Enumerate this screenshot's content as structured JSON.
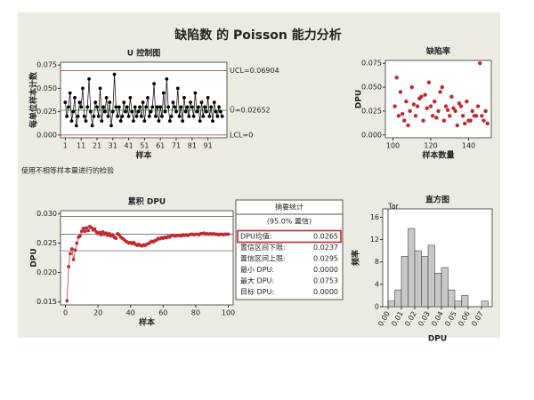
{
  "title": "缺陷数 的 Poisson 能力分析",
  "note": "使用不相等样本量进行的检验",
  "chart_data": [
    {
      "type": "line",
      "title": "U 控制图",
      "xlabel": "样本",
      "ylabel": "每单位样本计数",
      "color": "#000000",
      "limit_color": "#b03030",
      "ucl": 0.06904,
      "ucl_label": "UCL=0.06904",
      "center": 0.02652,
      "center_label": "Ū=0.02652",
      "lcl": 0,
      "lcl_label": "LCL=0",
      "x": [
        1,
        2,
        3,
        4,
        5,
        6,
        7,
        8,
        9,
        10,
        11,
        12,
        13,
        14,
        15,
        16,
        17,
        18,
        19,
        20,
        21,
        22,
        23,
        24,
        25,
        26,
        27,
        28,
        29,
        30,
        31,
        32,
        33,
        34,
        35,
        36,
        37,
        38,
        39,
        40,
        41,
        42,
        43,
        44,
        45,
        46,
        47,
        48,
        49,
        50,
        51,
        52,
        53,
        54,
        55,
        56,
        57,
        58,
        59,
        60,
        61,
        62,
        63,
        64,
        65,
        66,
        67,
        68,
        69,
        70,
        71,
        72,
        73,
        74,
        75,
        76,
        77,
        78,
        79,
        80,
        81,
        82,
        83,
        84,
        85,
        86,
        87,
        88,
        89,
        90,
        91,
        92,
        93,
        94,
        95,
        96,
        97,
        98,
        99,
        100
      ],
      "values": [
        0.035,
        0.02,
        0.03,
        0.045,
        0.015,
        0.025,
        0.04,
        0.01,
        0.02,
        0.035,
        0.03,
        0.05,
        0.02,
        0.015,
        0.03,
        0.06,
        0.025,
        0.01,
        0.02,
        0.035,
        0.03,
        0.02,
        0.05,
        0.015,
        0.03,
        0.025,
        0.04,
        0.02,
        0.035,
        0.01,
        0.025,
        0.065,
        0.03,
        0.02,
        0.03,
        0.015,
        0.02,
        0.035,
        0.025,
        0.03,
        0.02,
        0.04,
        0.025,
        0.015,
        0.03,
        0.02,
        0.025,
        0.03,
        0.02,
        0.035,
        0.015,
        0.03,
        0.04,
        0.02,
        0.025,
        0.03,
        0.055,
        0.02,
        0.03,
        0.015,
        0.03,
        0.02,
        0.045,
        0.025,
        0.06,
        0.03,
        0.015,
        0.02,
        0.035,
        0.03,
        0.025,
        0.05,
        0.02,
        0.03,
        0.015,
        0.04,
        0.025,
        0.03,
        0.02,
        0.035,
        0.03,
        0.02,
        0.045,
        0.025,
        0.03,
        0.015,
        0.035,
        0.02,
        0.03,
        0.025,
        0.04,
        0.02,
        0.03,
        0.015,
        0.035,
        0.025,
        0.02,
        0.03,
        0.025,
        0.02
      ],
      "xlim": [
        -2,
        103
      ],
      "xticks": [
        1,
        11,
        21,
        31,
        41,
        51,
        61,
        71,
        81,
        91
      ],
      "ylim": [
        -0.003,
        0.078
      ],
      "yticks": [
        {
          "value": 0,
          "label": "0.000"
        },
        0.025,
        {
          "value": 0.05,
          "label": "0.050"
        },
        0.075
      ]
    },
    {
      "type": "scatter",
      "title": "缺陷率",
      "xlabel": "样本数量",
      "ylabel": "DPU",
      "color": "#c0282d",
      "x": [
        101,
        103,
        104,
        106,
        107,
        109,
        110,
        112,
        113,
        115,
        116,
        118,
        119,
        121,
        122,
        124,
        125,
        127,
        128,
        130,
        131,
        133,
        134,
        136,
        137,
        139,
        140,
        142,
        143,
        145,
        146,
        148,
        149,
        102,
        108,
        114,
        120,
        126,
        132,
        138,
        144,
        105,
        111,
        117,
        123,
        129,
        135,
        141,
        147,
        150
      ],
      "values": [
        0.03,
        0.02,
        0.045,
        0.015,
        0.035,
        0.025,
        0.05,
        0.02,
        0.03,
        0.04,
        0.015,
        0.028,
        0.055,
        0.02,
        0.035,
        0.025,
        0.045,
        0.015,
        0.03,
        0.02,
        0.04,
        0.025,
        0.01,
        0.03,
        0.02,
        0.035,
        0.015,
        0.025,
        0.02,
        0.03,
        0.075,
        0.015,
        0.025,
        0.06,
        0.01,
        0.038,
        0.03,
        0.05,
        0.028,
        0.012,
        0.02,
        0.022,
        0.032,
        0.042,
        0.018,
        0.026,
        0.033,
        0.015,
        0.02,
        0.012
      ],
      "xlim": [
        96,
        152
      ],
      "xticks": [
        100,
        120,
        140
      ],
      "ylim": [
        -0.003,
        0.078
      ],
      "yticks": [
        {
          "value": 0,
          "label": "0.000"
        },
        0.025,
        {
          "value": 0.05,
          "label": "0.050"
        },
        0.075
      ]
    },
    {
      "type": "line",
      "title": "累积 DPU",
      "xlabel": "样本",
      "ylabel": "DPU",
      "color": "#c0282d",
      "ref_color": "#555555",
      "ref_lines": [
        0.0237,
        0.0265,
        0.0295
      ],
      "x": [
        1,
        2,
        3,
        4,
        5,
        6,
        7,
        8,
        9,
        10,
        11,
        12,
        13,
        14,
        15,
        16,
        17,
        18,
        19,
        20,
        21,
        22,
        23,
        24,
        25,
        26,
        27,
        28,
        29,
        30,
        31,
        32,
        33,
        34,
        35,
        36,
        37,
        38,
        39,
        40,
        41,
        42,
        43,
        44,
        45,
        46,
        47,
        48,
        49,
        50,
        51,
        52,
        53,
        54,
        55,
        56,
        57,
        58,
        59,
        60,
        61,
        62,
        63,
        64,
        65,
        66,
        67,
        68,
        69,
        70,
        71,
        72,
        73,
        74,
        75,
        76,
        77,
        78,
        79,
        80,
        81,
        82,
        83,
        84,
        85,
        86,
        87,
        88,
        89,
        90,
        91,
        92,
        93,
        94,
        95,
        96,
        97,
        98,
        99,
        100
      ],
      "values": [
        0.0152,
        0.021,
        0.0232,
        0.024,
        0.0222,
        0.0238,
        0.025,
        0.026,
        0.0262,
        0.027,
        0.0275,
        0.027,
        0.0276,
        0.0271,
        0.0278,
        0.0276,
        0.0272,
        0.0274,
        0.0269,
        0.0266,
        0.0268,
        0.0264,
        0.0269,
        0.0265,
        0.0267,
        0.0263,
        0.0266,
        0.0262,
        0.0264,
        0.026,
        0.0258,
        0.0266,
        0.0264,
        0.026,
        0.0258,
        0.0256,
        0.0253,
        0.0252,
        0.025,
        0.0251,
        0.0249,
        0.0251,
        0.0248,
        0.0246,
        0.0248,
        0.0246,
        0.0245,
        0.0247,
        0.0246,
        0.0248,
        0.0249,
        0.0251,
        0.0253,
        0.0252,
        0.0254,
        0.0255,
        0.0258,
        0.0257,
        0.0259,
        0.0258,
        0.026,
        0.0259,
        0.0261,
        0.026,
        0.0263,
        0.0263,
        0.0262,
        0.0262,
        0.0263,
        0.0263,
        0.0262,
        0.0264,
        0.0263,
        0.0264,
        0.0263,
        0.0264,
        0.0265,
        0.0265,
        0.0264,
        0.0265,
        0.0265,
        0.0264,
        0.0266,
        0.0266,
        0.0267,
        0.0265,
        0.0266,
        0.0265,
        0.0266,
        0.0265,
        0.0266,
        0.0265,
        0.0265,
        0.0264,
        0.0265,
        0.0265,
        0.0264,
        0.0265,
        0.0265,
        0.0265
      ],
      "xlim": [
        -3,
        103
      ],
      "xticks": [
        0,
        20,
        40,
        60,
        80,
        100
      ],
      "ylim": [
        0.0145,
        0.0305
      ],
      "yticks": [
        0.015,
        {
          "value": 0.02,
          "label": "0.020"
        },
        0.025,
        {
          "value": 0.03,
          "label": "0.030"
        }
      ]
    },
    {
      "type": "histogram",
      "title": "直方图",
      "xlabel": "DPU",
      "ylabel": "频率",
      "color": "#c8c8c8",
      "target": 0,
      "target_label": "Tar",
      "bins": [
        0,
        0.005,
        0.01,
        0.015,
        0.02,
        0.025,
        0.03,
        0.035,
        0.04,
        0.045,
        0.05,
        0.055,
        0.06,
        0.065,
        0.07,
        0.075
      ],
      "counts": [
        1,
        3,
        9,
        14,
        10,
        9,
        11,
        6,
        7,
        3,
        1,
        2,
        0,
        0,
        1
      ],
      "xlim": [
        -0.004,
        0.078
      ],
      "xticks": [
        {
          "value": 0,
          "label": "0.00"
        },
        0.01,
        0.02,
        0.03,
        0.04,
        0.05,
        0.06,
        0.07
      ],
      "ylim": [
        0,
        17.5
      ],
      "yticks": [
        0,
        4,
        8,
        12,
        16
      ]
    }
  ],
  "summary": {
    "title": "摘要统计",
    "subtitle": "(95.0% 置信)",
    "rows": [
      {
        "label": "DPU均值:",
        "value": "0.0265"
      },
      {
        "label": "置信区间下限:",
        "value": "0.0237"
      },
      {
        "label": "置信区间上限:",
        "value": "0.0295"
      },
      {
        "label": "最小 DPU:",
        "value": "0.0000"
      },
      {
        "label": "最大 DPU:",
        "value": "0.0753"
      },
      {
        "label": "目标 DPU:",
        "value": "0.0000"
      }
    ]
  }
}
